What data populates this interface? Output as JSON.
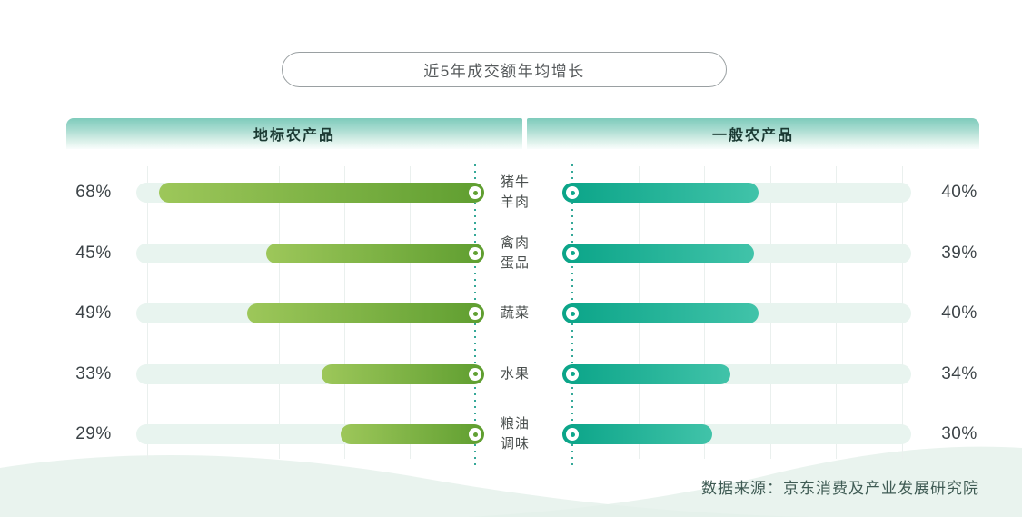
{
  "title": "近5年成交额年均增长",
  "columns": {
    "left": "地标农产品",
    "right": "一般农产品"
  },
  "source": "数据来源：京东消费及产业发展研究院",
  "colors": {
    "left_bar_gradient_start": "#9dc75a",
    "left_bar_gradient_end": "#5f9e30",
    "right_bar_gradient_start": "#0aa488",
    "right_bar_gradient_end": "#41c3a9",
    "track": "#e8f4ef",
    "axis_dotted": "#35a898",
    "header_gradient_top": "#7ecbbb",
    "wave": "#e3f0ea"
  },
  "chart_data": {
    "type": "bar",
    "title": "近5年成交额年均增长",
    "orientation": "horizontal-diverging",
    "categories": [
      "猪牛羊肉",
      "禽肉蛋品",
      "蔬菜",
      "水果",
      "粮油调味"
    ],
    "series": [
      {
        "name": "地标农产品",
        "side": "left",
        "values": [
          68,
          45,
          49,
          33,
          29
        ],
        "unit": "%"
      },
      {
        "name": "一般农产品",
        "side": "right",
        "values": [
          40,
          39,
          40,
          34,
          30
        ],
        "unit": "%"
      }
    ],
    "value_labels": {
      "left": [
        "68%",
        "45%",
        "49%",
        "33%",
        "29%"
      ],
      "right": [
        "40%",
        "39%",
        "40%",
        "34%",
        "30%"
      ]
    },
    "xlim": [
      0,
      73
    ],
    "grid": true,
    "legend_position": "top-headers",
    "source": "数据来源：京东消费及产业发展研究院"
  },
  "rows": [
    {
      "category_lines": [
        "猪牛",
        "羊肉"
      ],
      "left_label": "68%",
      "right_label": "40%"
    },
    {
      "category_lines": [
        "禽肉",
        "蛋品"
      ],
      "left_label": "45%",
      "right_label": "39%"
    },
    {
      "category_lines": [
        "蔬菜"
      ],
      "left_label": "49%",
      "right_label": "40%"
    },
    {
      "category_lines": [
        "水果"
      ],
      "left_label": "33%",
      "right_label": "34%"
    },
    {
      "category_lines": [
        "粮油",
        "调味"
      ],
      "left_label": "29%",
      "right_label": "30%"
    }
  ]
}
